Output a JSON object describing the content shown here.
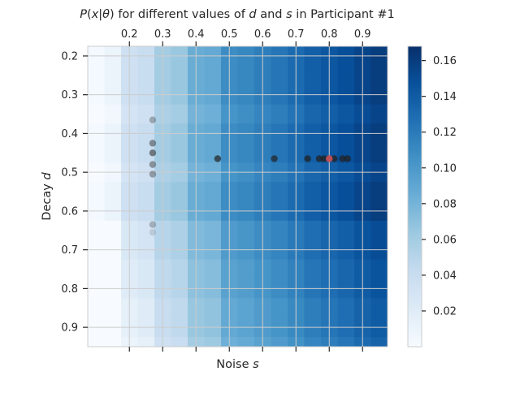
{
  "chart_data": {
    "type": "heatmap",
    "title_parts": [
      {
        "t": "P",
        "i": true
      },
      {
        "t": "(",
        "i": false
      },
      {
        "t": "x",
        "i": true
      },
      {
        "t": "|",
        "i": false
      },
      {
        "t": "θ",
        "i": true
      },
      {
        "t": ") for different values of ",
        "i": false
      },
      {
        "t": "d",
        "i": true
      },
      {
        "t": " and ",
        "i": false
      },
      {
        "t": "s",
        "i": true
      },
      {
        "t": " in Participant #1",
        "i": false
      }
    ],
    "xlabel_parts": [
      {
        "t": "Noise ",
        "i": false
      },
      {
        "t": "s",
        "i": true
      }
    ],
    "ylabel_parts": [
      {
        "t": "Decay ",
        "i": false
      },
      {
        "t": "d",
        "i": true
      }
    ],
    "x_centers": [
      0.1,
      0.15,
      0.2,
      0.25,
      0.3,
      0.35,
      0.4,
      0.45,
      0.5,
      0.55,
      0.6,
      0.65,
      0.7,
      0.75,
      0.8,
      0.85,
      0.9,
      0.95
    ],
    "y_centers": [
      0.15,
      0.2,
      0.25,
      0.3,
      0.35,
      0.4,
      0.45,
      0.5,
      0.55,
      0.6,
      0.65,
      0.7,
      0.75,
      0.8,
      0.85,
      0.9,
      0.95
    ],
    "xlim": [
      0.075,
      0.975
    ],
    "ylim": [
      0.175,
      0.95
    ],
    "x_ticks": [
      0.2,
      0.3,
      0.4,
      0.5,
      0.6,
      0.7,
      0.8,
      0.9
    ],
    "x_tick_labels": [
      "0.2",
      "0.3",
      "0.4",
      "0.5",
      "0.6",
      "0.7",
      "0.8",
      "0.9"
    ],
    "y_ticks": [
      0.2,
      0.3,
      0.4,
      0.5,
      0.6,
      0.7,
      0.8,
      0.9
    ],
    "y_tick_labels": [
      "0.2",
      "0.3",
      "0.4",
      "0.5",
      "0.6",
      "0.7",
      "0.8",
      "0.9"
    ],
    "x_tick_labels_position": "top",
    "y_axis_inverted": true,
    "grid": true,
    "colormap": "Blues",
    "colorbar": {
      "min": 0.0,
      "max": 0.168,
      "ticks": [
        0.02,
        0.04,
        0.06,
        0.08,
        0.1,
        0.12,
        0.14,
        0.16
      ],
      "tick_labels": [
        "0.02",
        "0.04",
        "0.06",
        "0.08",
        "0.10",
        "0.12",
        "0.14",
        "0.16"
      ]
    },
    "col_values": [
      0.003,
      0.01,
      0.035,
      0.04,
      0.06,
      0.065,
      0.085,
      0.088,
      0.108,
      0.112,
      0.118,
      0.123,
      0.13,
      0.138,
      0.143,
      0.148,
      0.155,
      0.16
    ],
    "row_offsets": [
      0.0,
      0.0,
      0.0,
      0.0,
      -0.005,
      0.0,
      0.0,
      -0.005,
      0.0,
      0.0,
      -0.01,
      -0.01,
      -0.015,
      -0.015,
      -0.02,
      -0.02,
      -0.025
    ],
    "points": [
      {
        "x": 0.27,
        "y": 0.365,
        "alpha": 0.35,
        "color": "#333333"
      },
      {
        "x": 0.27,
        "y": 0.425,
        "alpha": 0.5,
        "color": "#333333"
      },
      {
        "x": 0.27,
        "y": 0.45,
        "alpha": 0.6,
        "color": "#333333"
      },
      {
        "x": 0.27,
        "y": 0.48,
        "alpha": 0.45,
        "color": "#333333"
      },
      {
        "x": 0.27,
        "y": 0.505,
        "alpha": 0.4,
        "color": "#333333"
      },
      {
        "x": 0.27,
        "y": 0.635,
        "alpha": 0.3,
        "color": "#333333"
      },
      {
        "x": 0.27,
        "y": 0.655,
        "alpha": 0.15,
        "color": "#333333"
      },
      {
        "x": 0.465,
        "y": 0.465,
        "alpha": 0.7,
        "color": "#222222"
      },
      {
        "x": 0.635,
        "y": 0.465,
        "alpha": 0.7,
        "color": "#222222"
      },
      {
        "x": 0.735,
        "y": 0.465,
        "alpha": 0.75,
        "color": "#222222"
      },
      {
        "x": 0.77,
        "y": 0.465,
        "alpha": 0.75,
        "color": "#222222"
      },
      {
        "x": 0.785,
        "y": 0.465,
        "alpha": 0.75,
        "color": "#222222"
      },
      {
        "x": 0.815,
        "y": 0.465,
        "alpha": 0.75,
        "color": "#222222"
      },
      {
        "x": 0.84,
        "y": 0.465,
        "alpha": 0.75,
        "color": "#222222"
      },
      {
        "x": 0.855,
        "y": 0.465,
        "alpha": 0.75,
        "color": "#222222"
      },
      {
        "x": 0.8,
        "y": 0.465,
        "alpha": 0.95,
        "color": "#c44e52"
      }
    ]
  }
}
